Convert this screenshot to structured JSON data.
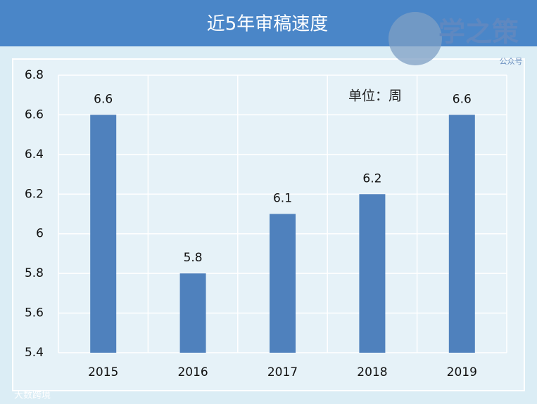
{
  "chart_data": {
    "type": "bar",
    "title": "近5年审稿速度",
    "unit_label": "单位：周",
    "categories": [
      "2015",
      "2016",
      "2017",
      "2018",
      "2019"
    ],
    "values": [
      6.6,
      5.8,
      6.1,
      6.2,
      6.6
    ],
    "color": "#4f81bd",
    "ylim": [
      5.4,
      6.8
    ],
    "yticks": [
      5.4,
      5.6,
      5.8,
      6,
      6.2,
      6.4,
      6.6,
      6.8
    ],
    "grid": true,
    "watermark": {
      "brand": "学之策",
      "sub": "公众号",
      "source": "大数跨境"
    }
  }
}
